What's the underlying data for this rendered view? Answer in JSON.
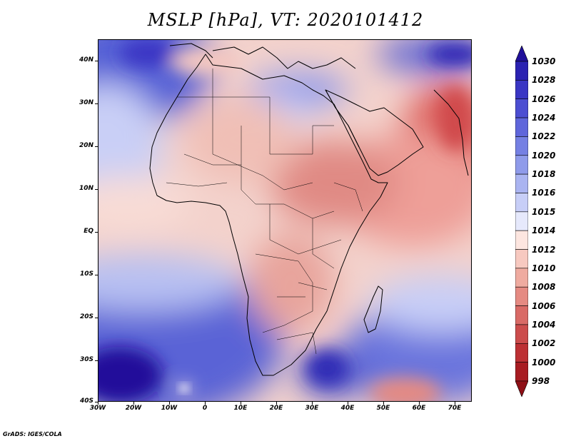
{
  "title": "MSLP [hPa], VT: 2020101412",
  "footer": "GrADS: IGES/COLA",
  "lat_labels": [
    "40N",
    "30N",
    "20N",
    "10N",
    "EQ",
    "10S",
    "20S",
    "30S",
    "40S"
  ],
  "lon_labels": [
    "30W",
    "20W",
    "10W",
    "0",
    "10E",
    "20E",
    "30E",
    "40E",
    "50E",
    "60E",
    "70E"
  ],
  "colorbar": {
    "labels": [
      "1030",
      "1028",
      "1026",
      "1024",
      "1022",
      "1020",
      "1018",
      "1016",
      "1015",
      "1014",
      "1012",
      "1010",
      "1008",
      "1006",
      "1004",
      "1002",
      "1000",
      "998"
    ],
    "colors": [
      "#20109a",
      "#2b22b2",
      "#3a36c4",
      "#4c4ed2",
      "#5f66db",
      "#7580e3",
      "#8f9bea",
      "#aab4f1",
      "#c7cef7",
      "#e6e9fc",
      "#fde6e0",
      "#f7c9c0",
      "#efaba0",
      "#e58a82",
      "#d96a66",
      "#cc4c4c",
      "#bd3034",
      "#a81c22",
      "#8e0f16"
    ]
  },
  "map": {
    "projection": "lat-lon",
    "lon_range": [
      -30,
      75
    ],
    "lat_range": [
      -40,
      45
    ]
  }
}
